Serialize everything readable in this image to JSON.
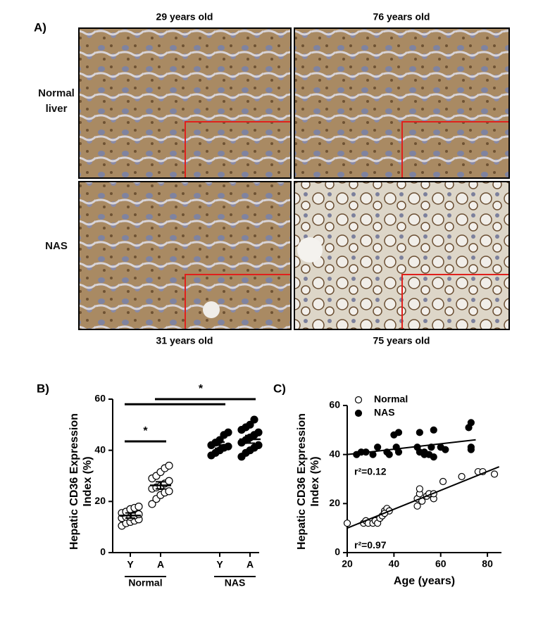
{
  "panel_a": {
    "label": "A)",
    "top_labels": [
      "29 years old",
      "76 years old"
    ],
    "bottom_labels": [
      "31 years old",
      "75 years old"
    ],
    "row_labels": [
      "Normal liver",
      "NAS"
    ]
  },
  "chart_data": [
    {
      "type": "dot",
      "panel_label": "B)",
      "y_label": "Hepatic CD36 Expression Index (%)",
      "categories": [
        "Y",
        "A",
        "Y",
        "A"
      ],
      "groups": [
        {
          "label": "Normal",
          "categories": [
            0,
            1
          ],
          "marker": "open"
        },
        {
          "label": "NAS",
          "categories": [
            2,
            3
          ],
          "marker": "filled"
        }
      ],
      "points": [
        [
          10.5,
          11.5,
          12,
          12.5,
          13,
          13.5,
          14,
          14,
          14.5,
          15,
          15.5,
          16,
          17,
          17.5,
          18
        ],
        [
          19,
          21,
          22.5,
          23.5,
          24,
          25,
          25.5,
          26,
          27,
          28,
          29,
          30,
          31.5,
          33,
          34
        ],
        [
          38,
          39,
          40,
          41,
          41.5,
          42,
          43,
          44,
          46,
          47
        ],
        [
          37.5,
          39,
          40,
          41,
          42,
          43,
          44,
          45,
          46,
          47,
          48,
          49,
          50,
          52
        ]
      ],
      "mean": [
        14.5,
        26.3,
        42,
        44.3
      ],
      "sem": [
        1,
        1.4,
        1.2,
        1.5
      ],
      "brackets": [
        {
          "from": 0,
          "to": 1,
          "y": 43.5,
          "label": "*"
        },
        {
          "from": 0,
          "to": 2,
          "y": 58
        },
        {
          "from": 1,
          "to": 3,
          "y": 60,
          "label": "*"
        }
      ],
      "color": "#000000",
      "ylim": [
        0,
        60
      ],
      "yticks": [
        0,
        20,
        40,
        60
      ]
    },
    {
      "type": "scatter",
      "panel_label": "C)",
      "y_label": "Hepatic CD36 Expression Index (%)",
      "x_label": "Age (years)",
      "legend": "top-left",
      "series": [
        {
          "name": "Normal",
          "marker": "open",
          "color": "#000000",
          "x": [
            20,
            27,
            28,
            29,
            31,
            32,
            33,
            34,
            35,
            36,
            37,
            38,
            36,
            50,
            50,
            51,
            51,
            52,
            54,
            55,
            57,
            57,
            61,
            69,
            76,
            78,
            83
          ],
          "y": [
            12,
            12,
            13,
            12,
            12,
            13,
            12,
            14,
            15,
            17,
            18,
            17,
            16,
            19,
            22,
            24,
            26,
            21,
            23,
            24,
            22,
            24,
            29,
            31,
            33,
            33,
            32
          ],
          "fit": {
            "x": [
              20,
              85
            ],
            "y": [
              10,
              35
            ]
          },
          "r2_label": "r²=0.97"
        },
        {
          "name": "NAS",
          "marker": "filled",
          "color": "#000000",
          "x": [
            24,
            26,
            28,
            31,
            33,
            37,
            38,
            40,
            41,
            42,
            42,
            50,
            51,
            51,
            53,
            53,
            55,
            56,
            57,
            57,
            60,
            62,
            72,
            73,
            73,
            73
          ],
          "y": [
            40,
            41,
            41,
            40,
            43,
            41,
            40,
            48,
            43,
            49,
            41,
            43,
            41,
            49,
            40,
            41,
            40,
            43,
            50,
            39,
            43,
            42,
            51,
            53,
            42,
            43
          ],
          "fit": {
            "x": [
              20,
              75
            ],
            "y": [
              40,
              46
            ]
          },
          "r2_label": "r²=0.12"
        }
      ],
      "xlim": [
        20,
        86
      ],
      "xticks": [
        20,
        40,
        60,
        80
      ],
      "ylim": [
        0,
        60
      ],
      "yticks": [
        0,
        20,
        40,
        60
      ]
    }
  ]
}
